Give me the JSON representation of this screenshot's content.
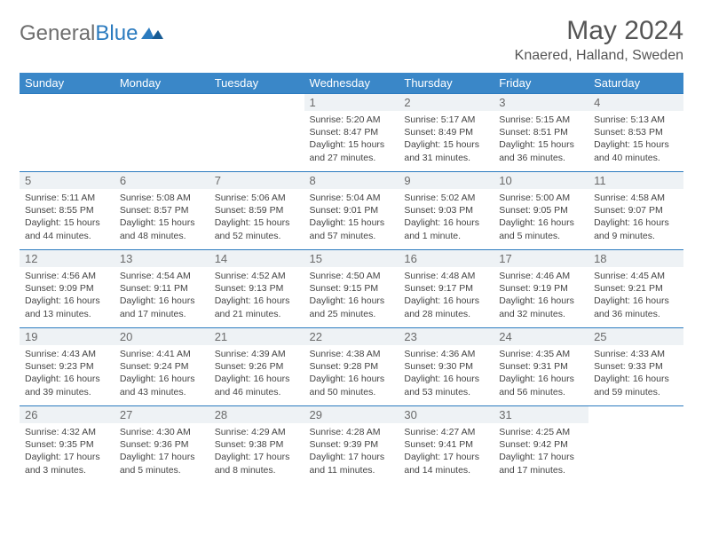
{
  "logo": {
    "first": "General",
    "second": "Blue"
  },
  "title": "May 2024",
  "location": "Knaered, Halland, Sweden",
  "colors": {
    "headerBg": "#3a87c8",
    "rowBorder": "#2b7bbf",
    "dayNumBg": "#eef2f5",
    "textMuted": "#6a6a6a"
  },
  "weekdays": [
    "Sunday",
    "Monday",
    "Tuesday",
    "Wednesday",
    "Thursday",
    "Friday",
    "Saturday"
  ],
  "weeks": [
    [
      {
        "empty": true
      },
      {
        "empty": true
      },
      {
        "empty": true
      },
      {
        "num": "1",
        "sunrise": "5:20 AM",
        "sunset": "8:47 PM",
        "daylight": "15 hours and 27 minutes."
      },
      {
        "num": "2",
        "sunrise": "5:17 AM",
        "sunset": "8:49 PM",
        "daylight": "15 hours and 31 minutes."
      },
      {
        "num": "3",
        "sunrise": "5:15 AM",
        "sunset": "8:51 PM",
        "daylight": "15 hours and 36 minutes."
      },
      {
        "num": "4",
        "sunrise": "5:13 AM",
        "sunset": "8:53 PM",
        "daylight": "15 hours and 40 minutes."
      }
    ],
    [
      {
        "num": "5",
        "sunrise": "5:11 AM",
        "sunset": "8:55 PM",
        "daylight": "15 hours and 44 minutes."
      },
      {
        "num": "6",
        "sunrise": "5:08 AM",
        "sunset": "8:57 PM",
        "daylight": "15 hours and 48 minutes."
      },
      {
        "num": "7",
        "sunrise": "5:06 AM",
        "sunset": "8:59 PM",
        "daylight": "15 hours and 52 minutes."
      },
      {
        "num": "8",
        "sunrise": "5:04 AM",
        "sunset": "9:01 PM",
        "daylight": "15 hours and 57 minutes."
      },
      {
        "num": "9",
        "sunrise": "5:02 AM",
        "sunset": "9:03 PM",
        "daylight": "16 hours and 1 minute."
      },
      {
        "num": "10",
        "sunrise": "5:00 AM",
        "sunset": "9:05 PM",
        "daylight": "16 hours and 5 minutes."
      },
      {
        "num": "11",
        "sunrise": "4:58 AM",
        "sunset": "9:07 PM",
        "daylight": "16 hours and 9 minutes."
      }
    ],
    [
      {
        "num": "12",
        "sunrise": "4:56 AM",
        "sunset": "9:09 PM",
        "daylight": "16 hours and 13 minutes."
      },
      {
        "num": "13",
        "sunrise": "4:54 AM",
        "sunset": "9:11 PM",
        "daylight": "16 hours and 17 minutes."
      },
      {
        "num": "14",
        "sunrise": "4:52 AM",
        "sunset": "9:13 PM",
        "daylight": "16 hours and 21 minutes."
      },
      {
        "num": "15",
        "sunrise": "4:50 AM",
        "sunset": "9:15 PM",
        "daylight": "16 hours and 25 minutes."
      },
      {
        "num": "16",
        "sunrise": "4:48 AM",
        "sunset": "9:17 PM",
        "daylight": "16 hours and 28 minutes."
      },
      {
        "num": "17",
        "sunrise": "4:46 AM",
        "sunset": "9:19 PM",
        "daylight": "16 hours and 32 minutes."
      },
      {
        "num": "18",
        "sunrise": "4:45 AM",
        "sunset": "9:21 PM",
        "daylight": "16 hours and 36 minutes."
      }
    ],
    [
      {
        "num": "19",
        "sunrise": "4:43 AM",
        "sunset": "9:23 PM",
        "daylight": "16 hours and 39 minutes."
      },
      {
        "num": "20",
        "sunrise": "4:41 AM",
        "sunset": "9:24 PM",
        "daylight": "16 hours and 43 minutes."
      },
      {
        "num": "21",
        "sunrise": "4:39 AM",
        "sunset": "9:26 PM",
        "daylight": "16 hours and 46 minutes."
      },
      {
        "num": "22",
        "sunrise": "4:38 AM",
        "sunset": "9:28 PM",
        "daylight": "16 hours and 50 minutes."
      },
      {
        "num": "23",
        "sunrise": "4:36 AM",
        "sunset": "9:30 PM",
        "daylight": "16 hours and 53 minutes."
      },
      {
        "num": "24",
        "sunrise": "4:35 AM",
        "sunset": "9:31 PM",
        "daylight": "16 hours and 56 minutes."
      },
      {
        "num": "25",
        "sunrise": "4:33 AM",
        "sunset": "9:33 PM",
        "daylight": "16 hours and 59 minutes."
      }
    ],
    [
      {
        "num": "26",
        "sunrise": "4:32 AM",
        "sunset": "9:35 PM",
        "daylight": "17 hours and 3 minutes."
      },
      {
        "num": "27",
        "sunrise": "4:30 AM",
        "sunset": "9:36 PM",
        "daylight": "17 hours and 5 minutes."
      },
      {
        "num": "28",
        "sunrise": "4:29 AM",
        "sunset": "9:38 PM",
        "daylight": "17 hours and 8 minutes."
      },
      {
        "num": "29",
        "sunrise": "4:28 AM",
        "sunset": "9:39 PM",
        "daylight": "17 hours and 11 minutes."
      },
      {
        "num": "30",
        "sunrise": "4:27 AM",
        "sunset": "9:41 PM",
        "daylight": "17 hours and 14 minutes."
      },
      {
        "num": "31",
        "sunrise": "4:25 AM",
        "sunset": "9:42 PM",
        "daylight": "17 hours and 17 minutes."
      },
      {
        "empty": true
      }
    ]
  ],
  "labels": {
    "sunrise": "Sunrise:",
    "sunset": "Sunset:",
    "daylight": "Daylight:"
  }
}
